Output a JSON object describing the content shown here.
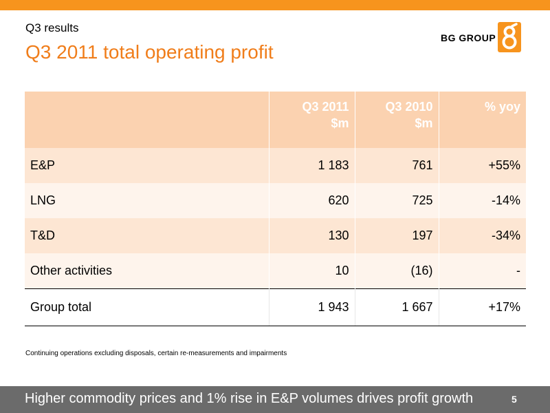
{
  "header": {
    "section": "Q3 results",
    "title": "Q3 2011 total operating profit",
    "brand": "BG GROUP"
  },
  "table": {
    "columns": [
      {
        "line1": "",
        "line2": ""
      },
      {
        "line1": "Q3 2011",
        "line2": "$m"
      },
      {
        "line1": "Q3 2010",
        "line2": "$m"
      },
      {
        "line1": "% yoy",
        "line2": ""
      }
    ],
    "rows": [
      {
        "label": "E&P",
        "q3_2011": "1 183",
        "q3_2010": "761",
        "yoy": "+55%"
      },
      {
        "label": "LNG",
        "q3_2011": "620",
        "q3_2010": "725",
        "yoy": "-14%"
      },
      {
        "label": "T&D",
        "q3_2011": "130",
        "q3_2010": "197",
        "yoy": "-34%"
      },
      {
        "label": "Other activities",
        "q3_2011": "10",
        "q3_2010": "(16)",
        "yoy": "-"
      },
      {
        "label": "Group total",
        "q3_2011": "1 943",
        "q3_2010": "1 667",
        "yoy": "+17%"
      }
    ]
  },
  "footnote": "Continuing operations excluding disposals, certain re-measurements and impairments",
  "footer": {
    "tagline": "Higher commodity prices and 1% rise in E&P volumes drives profit growth",
    "page_number": "5"
  },
  "colors": {
    "accent": "#f07d1a",
    "header_fill": "#fbd2b0",
    "footer_bar": "#6b6b6b"
  }
}
